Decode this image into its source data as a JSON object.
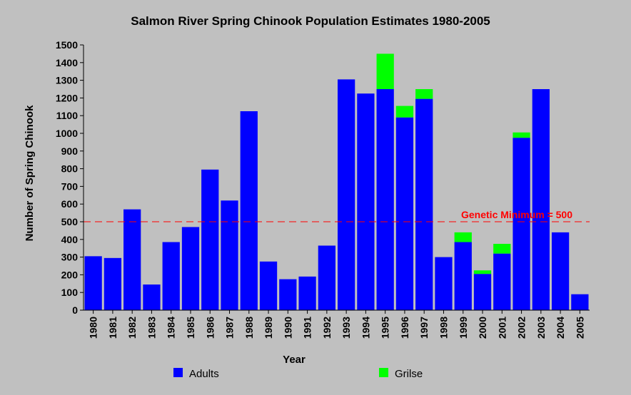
{
  "chart_data": {
    "type": "bar",
    "stacked": true,
    "title": "Salmon River Spring Chinook Population Estimates 1980-2005",
    "xlabel": "Year",
    "ylabel": "Number of Spring Chinook",
    "ylim": [
      0,
      1500
    ],
    "yticks": [
      0,
      100,
      200,
      300,
      400,
      500,
      600,
      700,
      800,
      900,
      1000,
      1100,
      1200,
      1300,
      1400,
      1500
    ],
    "grid": false,
    "legend_position": "bottom",
    "categories": [
      "1980",
      "1981",
      "1982",
      "1983",
      "1984",
      "1985",
      "1986",
      "1987",
      "1988",
      "1989",
      "1990",
      "1991",
      "1992",
      "1993",
      "1994",
      "1995",
      "1996",
      "1997",
      "1998",
      "1999",
      "2000",
      "2001",
      "2002",
      "2003",
      "2004",
      "2005"
    ],
    "series": [
      {
        "name": "Adults",
        "color": "#0000ff",
        "values": [
          305,
          295,
          570,
          145,
          385,
          470,
          795,
          620,
          1125,
          275,
          175,
          190,
          365,
          1305,
          1225,
          1250,
          1090,
          1195,
          300,
          385,
          205,
          320,
          975,
          1250,
          440,
          90
        ]
      },
      {
        "name": "Grilse",
        "color": "#00ff00",
        "values": [
          0,
          0,
          0,
          0,
          0,
          0,
          0,
          0,
          0,
          0,
          0,
          0,
          0,
          0,
          0,
          200,
          65,
          55,
          0,
          55,
          20,
          55,
          30,
          0,
          0,
          0
        ]
      }
    ],
    "reference_line": {
      "value": 500,
      "label": "Genetic Minimum = 500",
      "color": "#ff0000",
      "style": "dashed"
    }
  }
}
